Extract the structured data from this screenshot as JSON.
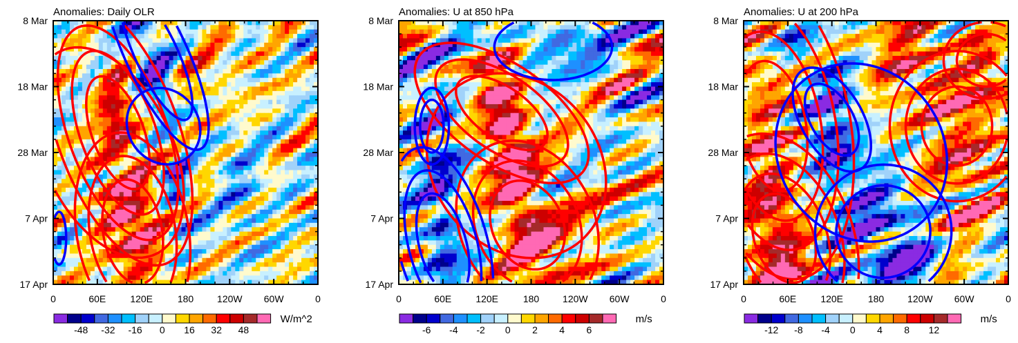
{
  "chart_data": [
    {
      "type": "heatmap",
      "title": "Anomalies: Daily OLR",
      "units": "W/m^2",
      "colorbar_labels": [
        "-48",
        "-32",
        "-16",
        "0",
        "16",
        "32",
        "48"
      ],
      "y_ticks": [
        "8 Mar",
        "18 Mar",
        "28 Mar",
        "7 Apr",
        "17 Apr"
      ],
      "x_ticks": [
        "0",
        "60E",
        "120E",
        "180",
        "120W",
        "60W",
        "0"
      ],
      "xlim": [
        0,
        360
      ],
      "ylim_days": [
        0,
        40
      ]
    },
    {
      "type": "heatmap",
      "title": "Anomalies: U at 850 hPa",
      "units": "m/s",
      "colorbar_labels": [
        "-6",
        "-4",
        "-2",
        "0",
        "2",
        "4",
        "6"
      ],
      "y_ticks": [
        "8 Mar",
        "18 Mar",
        "28 Mar",
        "7 Apr",
        "17 Apr"
      ],
      "x_ticks": [
        "0",
        "60E",
        "120E",
        "180",
        "120W",
        "60W",
        "0"
      ],
      "xlim": [
        0,
        360
      ],
      "ylim_days": [
        0,
        40
      ]
    },
    {
      "type": "heatmap",
      "title": "Anomalies: U at 200 hPa",
      "units": "m/s",
      "colorbar_labels": [
        "-12",
        "-8",
        "-4",
        "0",
        "4",
        "8",
        "12"
      ],
      "y_ticks": [
        "8 Mar",
        "18 Mar",
        "28 Mar",
        "7 Apr",
        "17 Apr"
      ],
      "x_ticks": [
        "0",
        "60E",
        "120E",
        "180",
        "120W",
        "60W",
        "0"
      ],
      "xlim": [
        0,
        360
      ],
      "ylim_days": [
        0,
        40
      ]
    }
  ],
  "palette": [
    "#8a2be2",
    "#00008b",
    "#0000cd",
    "#4169e1",
    "#1e90ff",
    "#00bfff",
    "#a0d2fa",
    "#c8f0ff",
    "#fffacd",
    "#ffd700",
    "#ffa500",
    "#ff6a00",
    "#ff0000",
    "#cd0000",
    "#a52a2a",
    "#ff69b4"
  ],
  "contour_colors": {
    "positive": "#ff0000",
    "negative": "#0000ff"
  }
}
